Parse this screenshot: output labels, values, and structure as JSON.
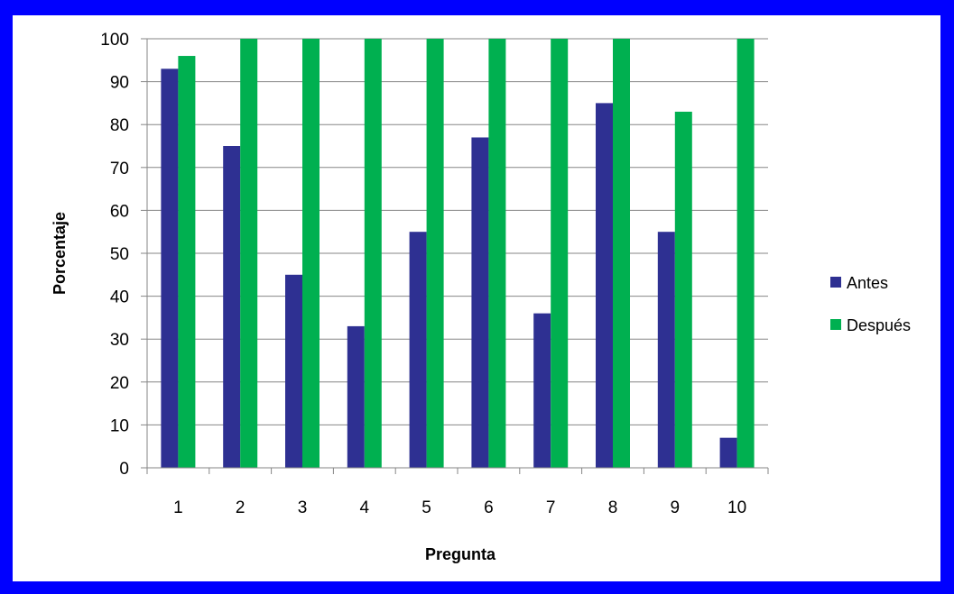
{
  "chart_data": {
    "type": "bar",
    "categories": [
      "1",
      "2",
      "3",
      "4",
      "5",
      "6",
      "7",
      "8",
      "9",
      "10"
    ],
    "series": [
      {
        "name": "Antes",
        "values": [
          93,
          75,
          45,
          33,
          55,
          77,
          36,
          85,
          55,
          7
        ],
        "color": "#2e3092"
      },
      {
        "name": "Después",
        "values": [
          96,
          100,
          100,
          100,
          100,
          100,
          100,
          100,
          83,
          100
        ],
        "color": "#00b050"
      }
    ],
    "xlabel": "Pregunta",
    "ylabel": "Porcentaje",
    "ylim": [
      0,
      100
    ],
    "yticks": [
      "0",
      "10",
      "20",
      "30",
      "40",
      "50",
      "60",
      "70",
      "80",
      "90",
      "100"
    ],
    "grid": true,
    "legend_position": "right"
  },
  "colors": {
    "border": "#0000ff",
    "background": "#ffffff",
    "gridline": "#868686"
  }
}
